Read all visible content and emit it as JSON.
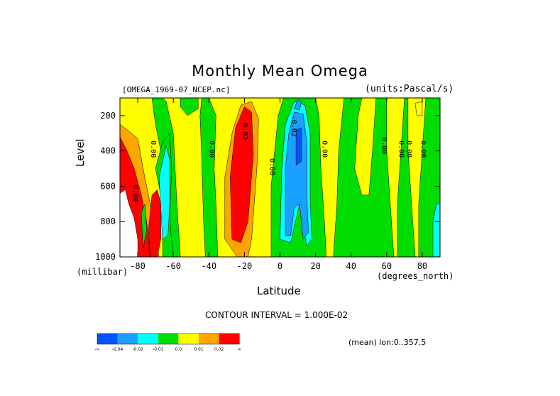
{
  "chart_data": {
    "type": "heatmap",
    "title": "Monthly Mean Omega",
    "subtitle": "[OMEGA_1969-07_NCEP.nc]",
    "units": "(units:Pascal/s)",
    "ylabel": "Level",
    "yunits": "(millibar)",
    "xlabel": "Latitude",
    "xunits": "(degrees_north)",
    "xlim": [
      -90,
      90
    ],
    "ylim": [
      1000,
      100
    ],
    "xticks": [
      "-80",
      "-60",
      "-40",
      "-20",
      "0",
      "20",
      "40",
      "60",
      "80"
    ],
    "xtick_values": [
      -80,
      -60,
      -40,
      -20,
      0,
      20,
      40,
      60,
      80
    ],
    "yticks": [
      "200",
      "400",
      "600",
      "800",
      "1000"
    ],
    "ytick_values": [
      200,
      400,
      600,
      800,
      1000
    ],
    "contour_interval": "CONTOUR INTERVAL = 1.000E-02",
    "mean_lon": "(mean) lon:0..357.5",
    "contour_labels": [
      {
        "text": "0.00",
        "lat": -72.5,
        "lev": 390
      },
      {
        "text": "0.00",
        "lat": -39.5,
        "lev": 390
      },
      {
        "text": "0.02",
        "lat": -21,
        "lev": 290
      },
      {
        "text": "0.00",
        "lat": -5.5,
        "lev": 490
      },
      {
        "text": "-0.02",
        "lat": 6.5,
        "lev": 260
      },
      {
        "text": "0.00",
        "lat": 24,
        "lev": 390
      },
      {
        "text": "0.00",
        "lat": 57.5,
        "lev": 370
      },
      {
        "text": "0.00",
        "lat": 67,
        "lev": 390
      },
      {
        "text": "0.00",
        "lat": 71.5,
        "lev": 390
      },
      {
        "text": "0.00",
        "lat": 79.5,
        "lev": 390
      },
      {
        "text": "0.00",
        "lat": -82.5,
        "lev": 640
      }
    ],
    "colorbar": {
      "colors": [
        "#0055ff",
        "#1aa0ff",
        "#00ffff",
        "#00dd00",
        "#ffff00",
        "#ffa500",
        "#ff0000"
      ],
      "labels": [
        "-∞",
        "-0.04",
        "-0.02",
        "-0.01",
        "0.0",
        "0.01",
        "0.02",
        "∞"
      ]
    }
  }
}
